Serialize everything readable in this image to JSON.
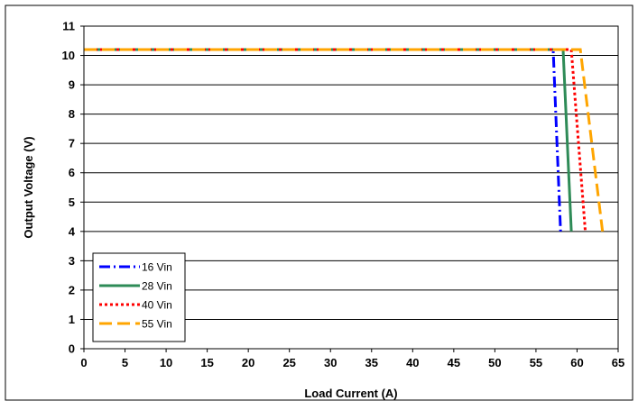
{
  "chart_data": {
    "type": "line",
    "xlabel": "Load Current (A)",
    "ylabel": "Output Voltage (V)",
    "xlim": [
      0,
      65
    ],
    "ylim": [
      0,
      11
    ],
    "x_ticks": [
      0,
      5,
      10,
      15,
      20,
      25,
      30,
      35,
      40,
      45,
      50,
      55,
      60,
      65
    ],
    "y_ticks": [
      0,
      1,
      2,
      3,
      4,
      5,
      6,
      7,
      8,
      9,
      10,
      11
    ],
    "grid": "horizontal",
    "legend_position": "bottom-left",
    "series": [
      {
        "name": "16 Vin",
        "color": "#0000ff",
        "dash": "dash-dot",
        "points": [
          [
            0,
            10.2
          ],
          [
            57.1,
            10.2
          ],
          [
            58.0,
            4.0
          ]
        ]
      },
      {
        "name": "28 Vin",
        "color": "#2e8b57",
        "dash": "solid",
        "points": [
          [
            0,
            10.2
          ],
          [
            58.3,
            10.2
          ],
          [
            59.3,
            4.0
          ]
        ]
      },
      {
        "name": "40 Vin",
        "color": "#ff0000",
        "dash": "dotted",
        "points": [
          [
            0,
            10.2
          ],
          [
            59.3,
            10.2
          ],
          [
            61.0,
            4.0
          ]
        ]
      },
      {
        "name": "55 Vin",
        "color": "#ffa500",
        "dash": "long-dash",
        "points": [
          [
            0,
            10.2
          ],
          [
            60.4,
            10.2
          ],
          [
            63.1,
            4.0
          ]
        ]
      }
    ]
  }
}
